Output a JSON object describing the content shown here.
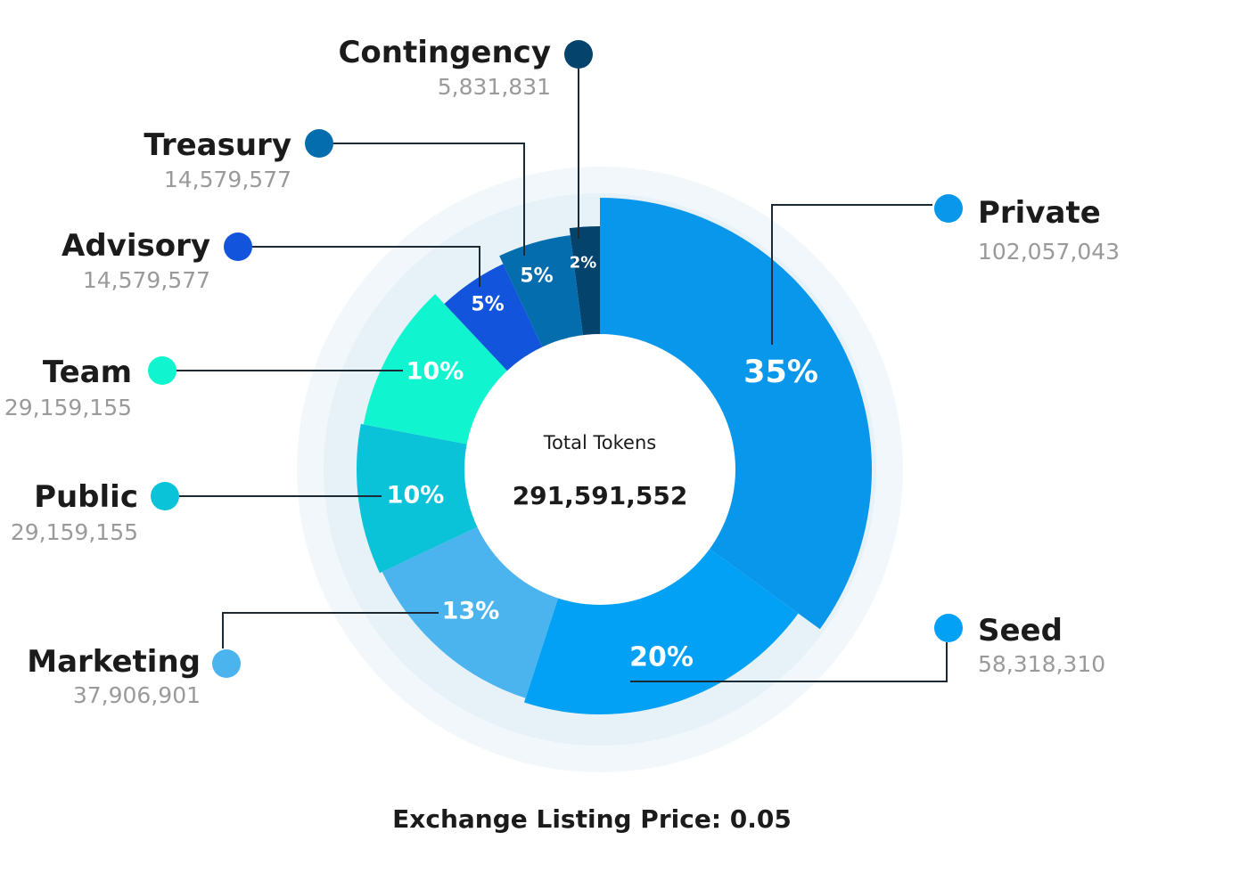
{
  "chart_data": {
    "type": "pie",
    "center_title": "Total Tokens",
    "center_value": "291,591,552",
    "footer": "Exchange Listing Price: 0.05",
    "slices": [
      {
        "name": "Private",
        "amount": "102,057,043",
        "value": 35,
        "label": "35%",
        "color": "#0997EB"
      },
      {
        "name": "Seed",
        "amount": "58,318,310",
        "value": 20,
        "label": "20%",
        "color": "#03A1F5"
      },
      {
        "name": "Marketing",
        "amount": "37,906,901",
        "value": 13,
        "label": "13%",
        "color": "#4BB4EE"
      },
      {
        "name": "Public",
        "amount": "29,159,155",
        "value": 10,
        "label": "10%",
        "color": "#0BC3D9"
      },
      {
        "name": "Team",
        "amount": "29,159,155",
        "value": 10,
        "label": "10%",
        "color": "#10F5CF"
      },
      {
        "name": "Advisory",
        "amount": "14,579,577",
        "value": 5,
        "label": "5%",
        "color": "#1254DB"
      },
      {
        "name": "Treasury",
        "amount": "14,579,577",
        "value": 5,
        "label": "5%",
        "color": "#036DAE"
      },
      {
        "name": "Contingency",
        "amount": "5,831,831",
        "value": 2,
        "label": "2%",
        "color": "#04436B"
      }
    ]
  }
}
